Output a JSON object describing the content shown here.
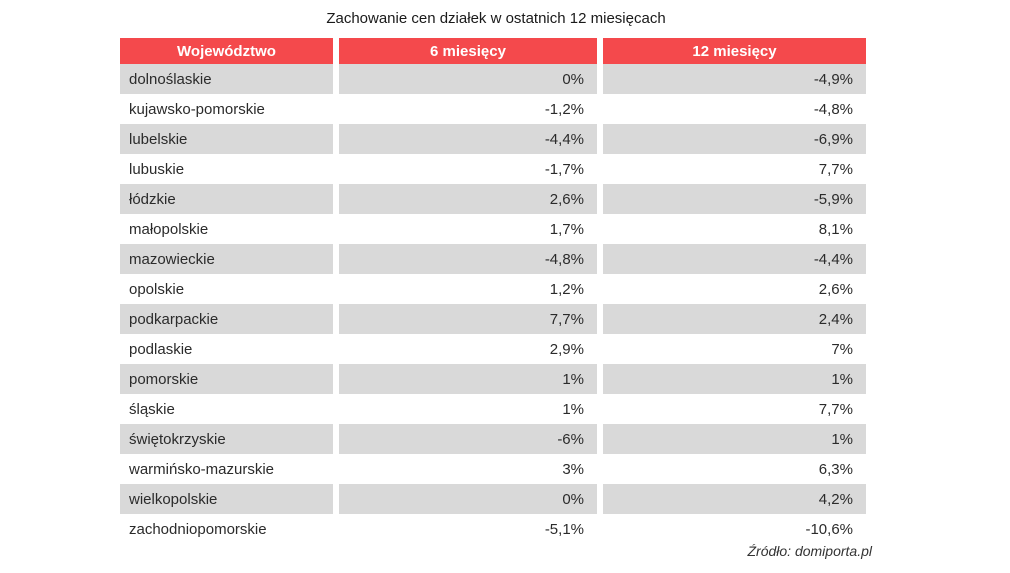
{
  "title": "Zachowanie cen działek w ostatnich 12 miesięcach",
  "source": "Źródło: domiporta.pl",
  "colors": {
    "header_bg": "#f4494c",
    "row_alt_bg": "#d9d9d9",
    "row_bg": "#ffffff",
    "header_text": "#ffffff"
  },
  "chart_data": {
    "type": "table",
    "title": "Zachowanie cen działek w ostatnich 12 miesięcach",
    "columns": [
      "Województwo",
      "6 miesięcy",
      "12 miesięcy"
    ],
    "rows": [
      [
        "dolnoślaskie",
        "0%",
        "-4,9%"
      ],
      [
        "kujawsko-pomorskie",
        "-1,2%",
        "-4,8%"
      ],
      [
        "lubelskie",
        "-4,4%",
        "-6,9%"
      ],
      [
        "lubuskie",
        "-1,7%",
        "7,7%"
      ],
      [
        "łódzkie",
        "2,6%",
        "-5,9%"
      ],
      [
        "małopolskie",
        "1,7%",
        "8,1%"
      ],
      [
        "mazowieckie",
        "-4,8%",
        "-4,4%"
      ],
      [
        "opolskie",
        "1,2%",
        "2,6%"
      ],
      [
        "podkarpackie",
        "7,7%",
        "2,4%"
      ],
      [
        "podlaskie",
        "2,9%",
        "7%"
      ],
      [
        "pomorskie",
        "1%",
        "1%"
      ],
      [
        "śląskie",
        "1%",
        "7,7%"
      ],
      [
        "świętokrzyskie",
        "-6%",
        "1%"
      ],
      [
        "warmińsko-mazurskie",
        "3%",
        "6,3%"
      ],
      [
        "wielkopolskie",
        "0%",
        "4,2%"
      ],
      [
        "zachodniopomorskie",
        "-5,1%",
        "-10,6%"
      ]
    ]
  }
}
